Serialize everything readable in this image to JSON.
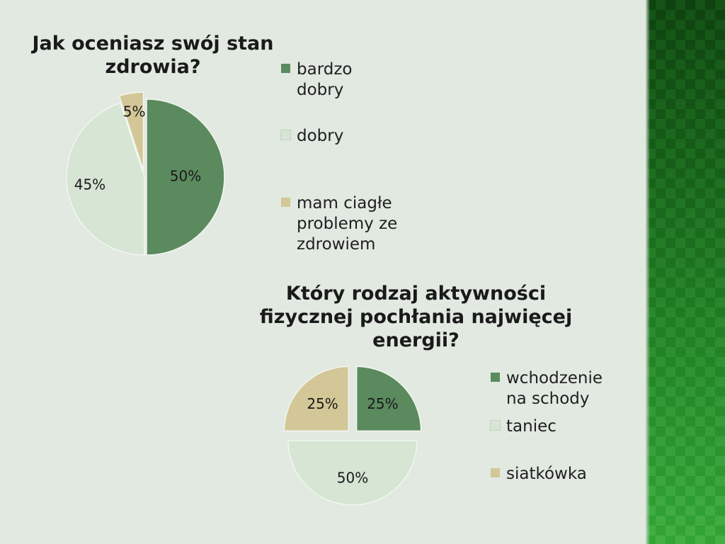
{
  "chart_data": [
    {
      "type": "pie",
      "title": "Jak oceniasz swój stan zdrowia?",
      "categories": [
        "bardzo dobry",
        "dobry",
        "mam ciagłe problemy ze zdrowiem"
      ],
      "values": [
        50,
        45,
        5
      ],
      "value_labels": [
        "50%",
        "45%",
        "5%"
      ],
      "colors": [
        "#5a8a5d",
        "#d6e5d4",
        "#d3c797"
      ],
      "exploded": true,
      "legend": "right"
    },
    {
      "type": "pie",
      "title": "Który rodzaj aktywności fizycznej pochłania najwięcej energii?",
      "categories": [
        "wchodzenie na schody",
        "taniec",
        "siatkówka"
      ],
      "values": [
        25,
        50,
        25
      ],
      "value_labels": [
        "25%",
        "50%",
        "25%"
      ],
      "colors": [
        "#5a8a5d",
        "#d6e5d4",
        "#d3c797"
      ],
      "exploded": true,
      "legend": "right"
    }
  ]
}
